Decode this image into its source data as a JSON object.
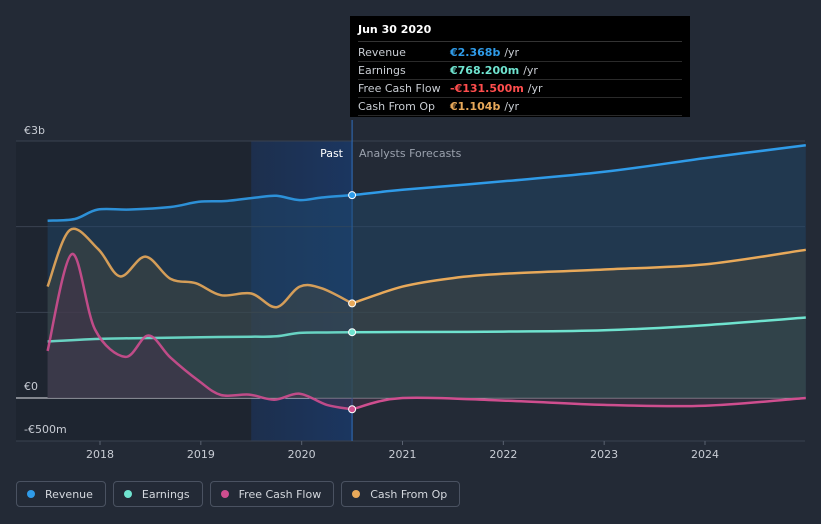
{
  "chart_data": {
    "type": "line",
    "currency_labels": {
      "top": "€3b",
      "zero": "€0",
      "bottom": "-€500m"
    },
    "y_range_millions": [
      -500,
      3000
    ],
    "x_range_years": [
      2017.35,
      2025.0
    ],
    "x_ticks": [
      {
        "label": "2018",
        "year": 2018
      },
      {
        "label": "2019",
        "year": 2019
      },
      {
        "label": "2020",
        "year": 2020
      },
      {
        "label": "2021",
        "year": 2021
      },
      {
        "label": "2022",
        "year": 2022
      },
      {
        "label": "2023",
        "year": 2023
      },
      {
        "label": "2024",
        "year": 2024
      }
    ],
    "past_label": "Past",
    "forecast_label": "Analysts Forecasts",
    "divider_year": 2020.5,
    "highlight_start_year": 2019.5,
    "series": [
      {
        "name": "Revenue",
        "color": "#2f9be8",
        "fill": "#1f4a6e",
        "past": [
          [
            2017.48,
            2070
          ],
          [
            2017.75,
            2090
          ],
          [
            2017.98,
            2200
          ],
          [
            2018.3,
            2200
          ],
          [
            2018.7,
            2230
          ],
          [
            2018.98,
            2290
          ],
          [
            2019.25,
            2300
          ],
          [
            2019.55,
            2340
          ],
          [
            2019.75,
            2360
          ],
          [
            2019.98,
            2310
          ],
          [
            2020.2,
            2340
          ],
          [
            2020.5,
            2368
          ]
        ],
        "forecast": [
          [
            2020.5,
            2368
          ],
          [
            2021,
            2430
          ],
          [
            2022,
            2530
          ],
          [
            2023,
            2640
          ],
          [
            2024,
            2800
          ],
          [
            2025,
            2950
          ]
        ]
      },
      {
        "name": "Cash From Op",
        "color": "#e8a95a",
        "fill": "#4a4a3e",
        "past": [
          [
            2017.48,
            1300
          ],
          [
            2017.7,
            1960
          ],
          [
            2017.98,
            1740
          ],
          [
            2018.2,
            1420
          ],
          [
            2018.45,
            1650
          ],
          [
            2018.7,
            1390
          ],
          [
            2018.95,
            1340
          ],
          [
            2019.2,
            1200
          ],
          [
            2019.5,
            1220
          ],
          [
            2019.75,
            1060
          ],
          [
            2019.98,
            1300
          ],
          [
            2020.2,
            1280
          ],
          [
            2020.5,
            1104
          ]
        ],
        "forecast": [
          [
            2020.5,
            1104
          ],
          [
            2021,
            1300
          ],
          [
            2021.5,
            1400
          ],
          [
            2022,
            1450
          ],
          [
            2023,
            1500
          ],
          [
            2024,
            1560
          ],
          [
            2025,
            1730
          ]
        ]
      },
      {
        "name": "Earnings",
        "color": "#6fe3cf",
        "fill": "#2e4a4e",
        "past": [
          [
            2017.48,
            660
          ],
          [
            2018,
            690
          ],
          [
            2018.5,
            700
          ],
          [
            2019,
            710
          ],
          [
            2019.5,
            715
          ],
          [
            2019.75,
            720
          ],
          [
            2019.98,
            760
          ],
          [
            2020.25,
            765
          ],
          [
            2020.5,
            768
          ]
        ],
        "forecast": [
          [
            2020.5,
            768
          ],
          [
            2021,
            770
          ],
          [
            2022,
            775
          ],
          [
            2023,
            790
          ],
          [
            2024,
            850
          ],
          [
            2025,
            940
          ]
        ]
      },
      {
        "name": "Free Cash Flow",
        "color": "#cf4e8f",
        "fill": "#4a2e4a",
        "past": [
          [
            2017.48,
            550
          ],
          [
            2017.72,
            1680
          ],
          [
            2017.95,
            800
          ],
          [
            2018.25,
            480
          ],
          [
            2018.48,
            730
          ],
          [
            2018.7,
            470
          ],
          [
            2018.98,
            200
          ],
          [
            2019.2,
            35
          ],
          [
            2019.48,
            40
          ],
          [
            2019.73,
            -20
          ],
          [
            2019.98,
            50
          ],
          [
            2020.25,
            -80
          ],
          [
            2020.5,
            -131.5
          ]
        ],
        "forecast": [
          [
            2020.5,
            -131.5
          ],
          [
            2021,
            0
          ],
          [
            2022,
            -30
          ],
          [
            2023,
            -80
          ],
          [
            2024,
            -90
          ],
          [
            2025,
            0
          ]
        ]
      }
    ],
    "marker_values": {
      "Revenue": 2368,
      "Earnings": 768.2,
      "Free Cash Flow": -131.5,
      "Cash From Op": 1104
    }
  },
  "tooltip": {
    "title": "Jun 30 2020",
    "rows": [
      {
        "label": "Revenue",
        "value": "€2.368b",
        "unit": "/yr",
        "color": "#2f9be8"
      },
      {
        "label": "Earnings",
        "value": "€768.200m",
        "unit": "/yr",
        "color": "#6fe3cf"
      },
      {
        "label": "Free Cash Flow",
        "value": "-€131.500m",
        "unit": "/yr",
        "color": "#ff4d4d"
      },
      {
        "label": "Cash From Op",
        "value": "€1.104b",
        "unit": "/yr",
        "color": "#e8a95a"
      }
    ]
  },
  "legend": [
    {
      "label": "Revenue",
      "color": "#2f9be8"
    },
    {
      "label": "Earnings",
      "color": "#6fe3cf"
    },
    {
      "label": "Free Cash Flow",
      "color": "#cf4e8f"
    },
    {
      "label": "Cash From Op",
      "color": "#e8a95a"
    }
  ]
}
